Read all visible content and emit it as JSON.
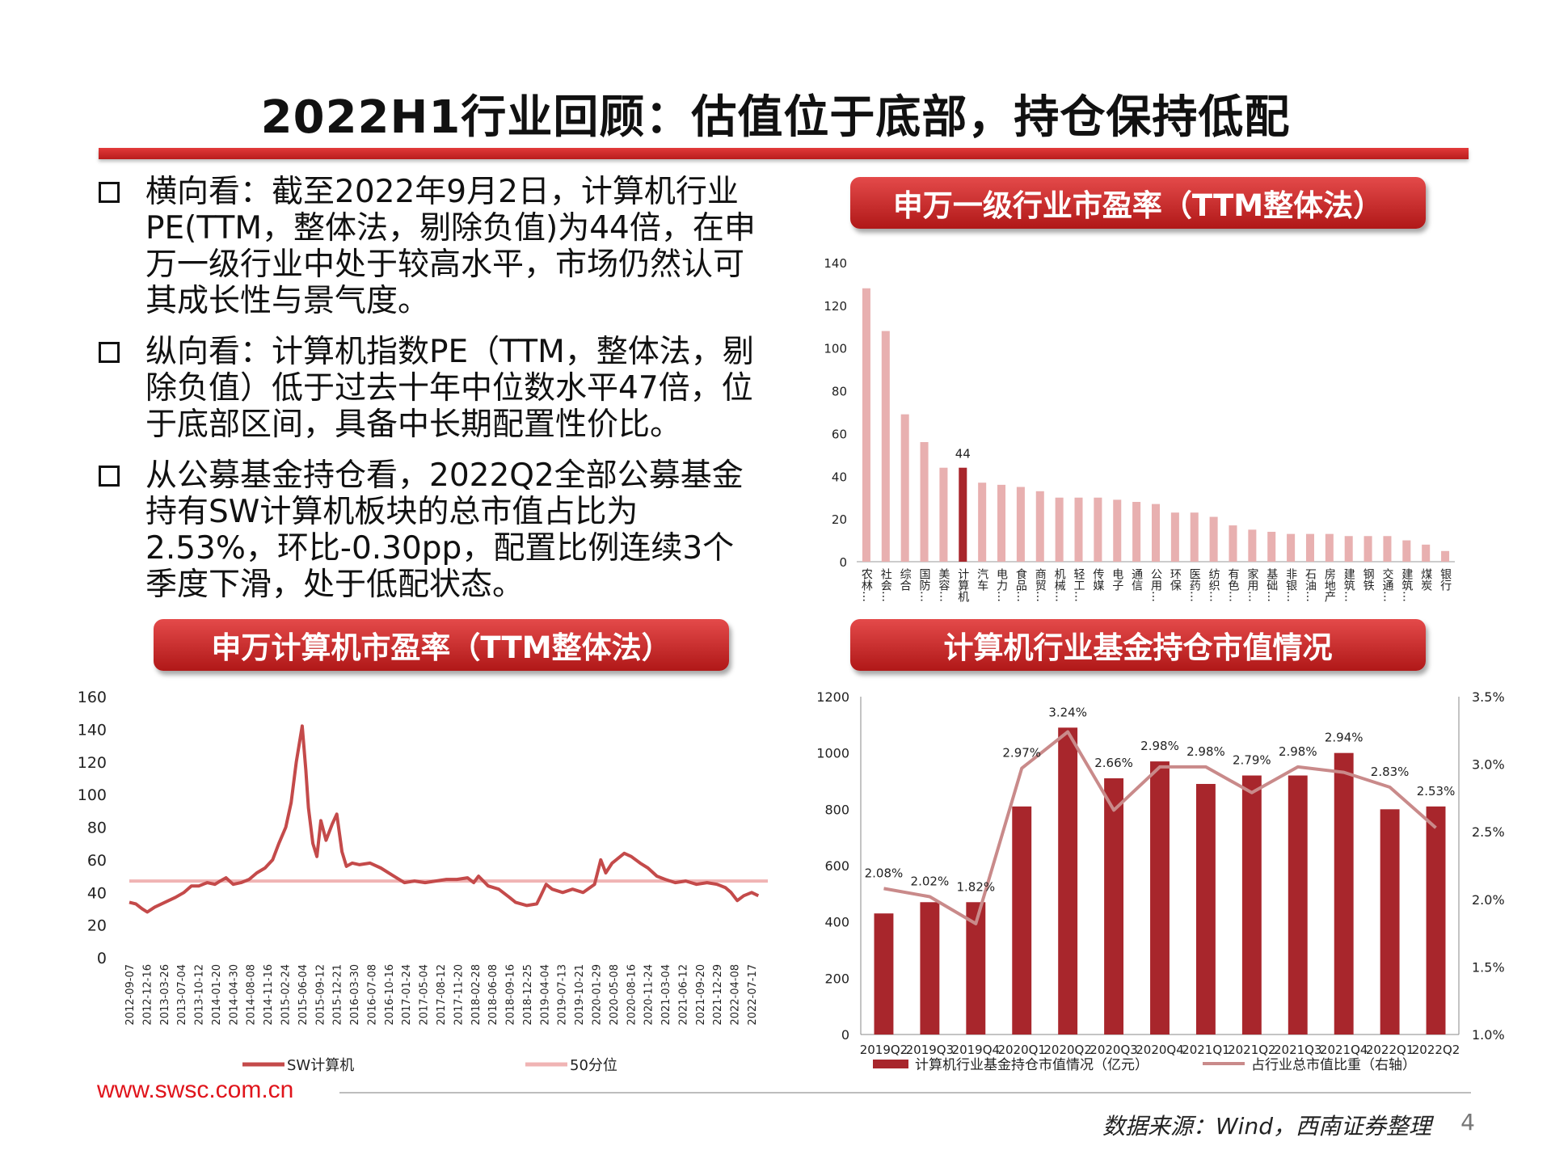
{
  "title": "2022H1行业回顾：估值位于底部，持仓保持低配",
  "bullets": [
    "横向看：截至2022年9月2日，计算机行业PE(TTM，整体法，剔除负值)为44倍，在申万一级行业中处于较高水平，市场仍然认可其成长性与景气度。",
    "纵向看：计算机指数PE（TTM，整体法，剔除负值）低于过去十年中位数水平47倍，位于底部区间，具备中长期配置性价比。",
    "从公募基金持仓看，2022Q2全部公募基金持有SW计算机板块的总市值占比为2.53%，环比-0.30pp，配置比例连续3个季度下滑，处于低配状态。"
  ],
  "banners": {
    "industry_pe": "申万一级行业市盈率（TTM整体法）",
    "computer_pe": "申万计算机市盈率（TTM整体法）",
    "fund_holdings": "计算机行业基金持仓市值情况"
  },
  "footer": {
    "site": "www.swsc.com.cn",
    "source": "数据来源：Wind，西南证券整理",
    "page": "4"
  },
  "colors": {
    "accent": "#c0191f",
    "dark_bar": "#a8262c",
    "light_bar": "#e8b0b0",
    "line": "#c44a4a",
    "median": "#f0b4b4",
    "fund_line": "#c98a8a"
  },
  "chart_data": [
    {
      "type": "bar",
      "categories": [
        "农林…",
        "社会…",
        "综合",
        "国防…",
        "美容…",
        "计算机",
        "汽车",
        "电力…",
        "食品…",
        "商贸…",
        "机械…",
        "轻工…",
        "传媒",
        "电子",
        "通信",
        "公用…",
        "环保",
        "医药…",
        "纺织…",
        "有色…",
        "家用…",
        "基础…",
        "非银…",
        "石油…",
        "房地产",
        "建筑…",
        "钢铁",
        "交通…",
        "建筑…",
        "煤炭",
        "银行"
      ],
      "values": [
        128,
        108,
        69,
        56,
        44,
        44,
        37,
        36,
        35,
        33,
        30,
        30,
        30,
        29,
        28,
        27,
        23,
        23,
        21,
        17,
        15,
        14,
        13,
        13,
        13,
        12,
        12,
        12,
        10,
        8,
        5
      ],
      "highlight": "计算机",
      "highlight_label": "44",
      "ylim": [
        0,
        140
      ],
      "yticks": [
        0,
        20,
        40,
        60,
        80,
        100,
        120,
        140
      ]
    },
    {
      "type": "line",
      "x_ticks": [
        "2012-09-07",
        "2012-12-16",
        "2013-03-26",
        "2013-07-04",
        "2013-10-12",
        "2014-01-20",
        "2014-04-30",
        "2014-08-08",
        "2014-11-16",
        "2015-02-24",
        "2015-06-04",
        "2015-09-12",
        "2015-12-21",
        "2016-03-30",
        "2016-07-08",
        "2016-10-16",
        "2017-01-24",
        "2017-05-04",
        "2017-08-12",
        "2017-11-20",
        "2018-02-28",
        "2018-06-08",
        "2018-09-16",
        "2018-12-25",
        "2019-04-04",
        "2019-07-13",
        "2019-10-21",
        "2020-01-29",
        "2020-05-08",
        "2020-08-16",
        "2020-11-24",
        "2021-03-04",
        "2021-06-12",
        "2021-09-20",
        "2021-12-29",
        "2022-04-08",
        "2022-07-17"
      ],
      "ylim": [
        0,
        160
      ],
      "yticks": [
        0,
        20,
        40,
        60,
        80,
        100,
        120,
        140,
        160
      ],
      "series": [
        {
          "name": "SW计算机",
          "x": [
            "2012-09-07",
            "2012-10-15",
            "2012-11-20",
            "2012-12-20",
            "2013-02-01",
            "2013-04-01",
            "2013-06-01",
            "2013-07-20",
            "2013-09-01",
            "2013-10-15",
            "2013-12-01",
            "2014-01-15",
            "2014-02-15",
            "2014-03-20",
            "2014-05-01",
            "2014-06-15",
            "2014-08-01",
            "2014-09-15",
            "2014-11-01",
            "2014-12-15",
            "2015-01-20",
            "2015-03-01",
            "2015-04-01",
            "2015-05-01",
            "2015-06-04",
            "2015-06-25",
            "2015-07-10",
            "2015-08-05",
            "2015-08-28",
            "2015-09-20",
            "2015-10-20",
            "2015-11-25",
            "2015-12-21",
            "2016-01-20",
            "2016-02-15",
            "2016-03-20",
            "2016-05-01",
            "2016-07-01",
            "2016-09-01",
            "2016-11-15",
            "2017-01-15",
            "2017-03-15",
            "2017-05-15",
            "2017-07-15",
            "2017-09-15",
            "2017-11-15",
            "2018-01-15",
            "2018-02-20",
            "2018-03-20",
            "2018-05-15",
            "2018-07-15",
            "2018-09-15",
            "2018-10-20",
            "2018-12-25",
            "2019-02-20",
            "2019-03-15",
            "2019-04-15",
            "2019-05-20",
            "2019-07-20",
            "2019-09-15",
            "2019-11-15",
            "2020-01-20",
            "2020-02-25",
            "2020-03-25",
            "2020-05-01",
            "2020-07-10",
            "2020-08-20",
            "2020-10-10",
            "2020-11-24",
            "2021-01-15",
            "2021-03-04",
            "2021-05-01",
            "2021-07-01",
            "2021-09-01",
            "2021-11-01",
            "2021-12-29",
            "2022-02-15",
            "2022-03-20",
            "2022-04-25",
            "2022-06-01",
            "2022-07-17",
            "2022-08-25"
          ],
          "y": [
            34,
            33,
            30,
            28,
            31,
            34,
            37,
            40,
            44,
            44,
            46,
            45,
            47,
            49,
            45,
            46,
            48,
            52,
            55,
            60,
            70,
            80,
            95,
            120,
            142,
            115,
            92,
            70,
            62,
            84,
            72,
            82,
            88,
            65,
            56,
            58,
            57,
            58,
            55,
            50,
            46,
            47,
            46,
            47,
            48,
            48,
            49,
            46,
            50,
            44,
            42,
            37,
            34,
            32,
            33,
            38,
            45,
            42,
            40,
            42,
            40,
            45,
            60,
            52,
            58,
            64,
            62,
            58,
            55,
            50,
            48,
            46,
            47,
            45,
            46,
            45,
            43,
            40,
            35,
            38,
            40,
            38
          ]
        },
        {
          "name": "50分位",
          "value": 47
        }
      ]
    },
    {
      "type": "bar",
      "categories": [
        "2019Q2",
        "2019Q3",
        "2019Q4",
        "2020Q1",
        "2020Q2",
        "2020Q3",
        "2020Q4",
        "2021Q1",
        "2021Q2",
        "2021Q3",
        "2021Q4",
        "2022Q1",
        "2022Q2"
      ],
      "series": [
        {
          "name": "计算机行业基金持仓市值情况（亿元）",
          "values": [
            430,
            470,
            470,
            810,
            1090,
            910,
            970,
            890,
            920,
            920,
            1000,
            800,
            810
          ]
        },
        {
          "name": "占行业总市值比重（右轴）",
          "type": "line",
          "values": [
            2.08,
            2.02,
            1.82,
            2.97,
            3.24,
            2.66,
            2.98,
            2.98,
            2.79,
            2.98,
            2.94,
            2.83,
            2.53
          ],
          "labels": [
            "2.08%",
            "2.02%",
            "1.82%",
            "2.97%",
            "3.24%",
            "2.66%",
            "2.98%",
            "2.98%",
            "2.79%",
            "2.98%",
            "2.94%",
            "2.83%",
            "2.53%"
          ]
        }
      ],
      "ylim": [
        0,
        1200
      ],
      "yticks": [
        0,
        200,
        400,
        600,
        800,
        1000,
        1200
      ],
      "y2lim": [
        1.0,
        3.5
      ],
      "y2ticks": [
        "1.0%",
        "1.5%",
        "2.0%",
        "2.5%",
        "3.0%",
        "3.5%"
      ]
    }
  ]
}
